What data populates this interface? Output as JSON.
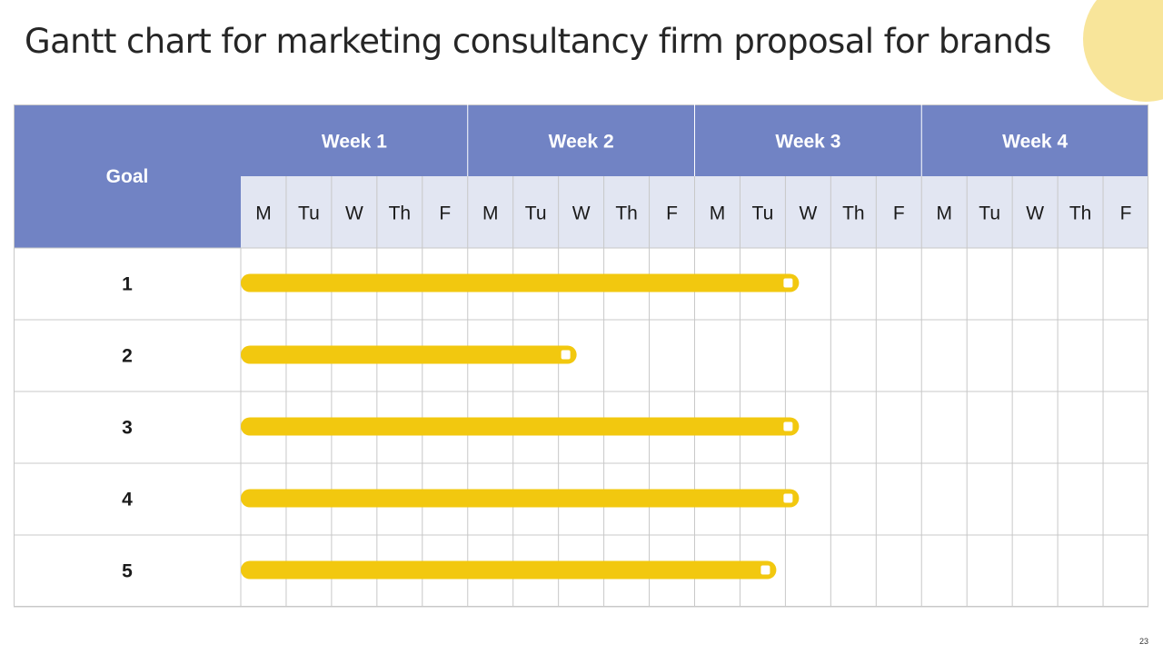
{
  "title": "Gantt chart for marketing consultancy firm proposal for brands",
  "page_number": "23",
  "colors": {
    "header": "#7183c4",
    "day_row": "#e2e6f2",
    "bar": "#f2c80f",
    "accent_circle": "#f8e59a",
    "grid": "#c8c8c8"
  },
  "chart_data": {
    "type": "gantt",
    "goal_header": "Goal",
    "weeks": [
      "Week 1",
      "Week 2",
      "Week 3",
      "Week 4"
    ],
    "days": [
      "M",
      "Tu",
      "W",
      "Th",
      "F"
    ],
    "tasks": [
      {
        "label": "1",
        "start_day": 0,
        "end_day": 12.3
      },
      {
        "label": "2",
        "start_day": 0,
        "end_day": 7.4
      },
      {
        "label": "3",
        "start_day": 0,
        "end_day": 12.3
      },
      {
        "label": "4",
        "start_day": 0,
        "end_day": 12.3
      },
      {
        "label": "5",
        "start_day": 0,
        "end_day": 11.8
      }
    ]
  }
}
